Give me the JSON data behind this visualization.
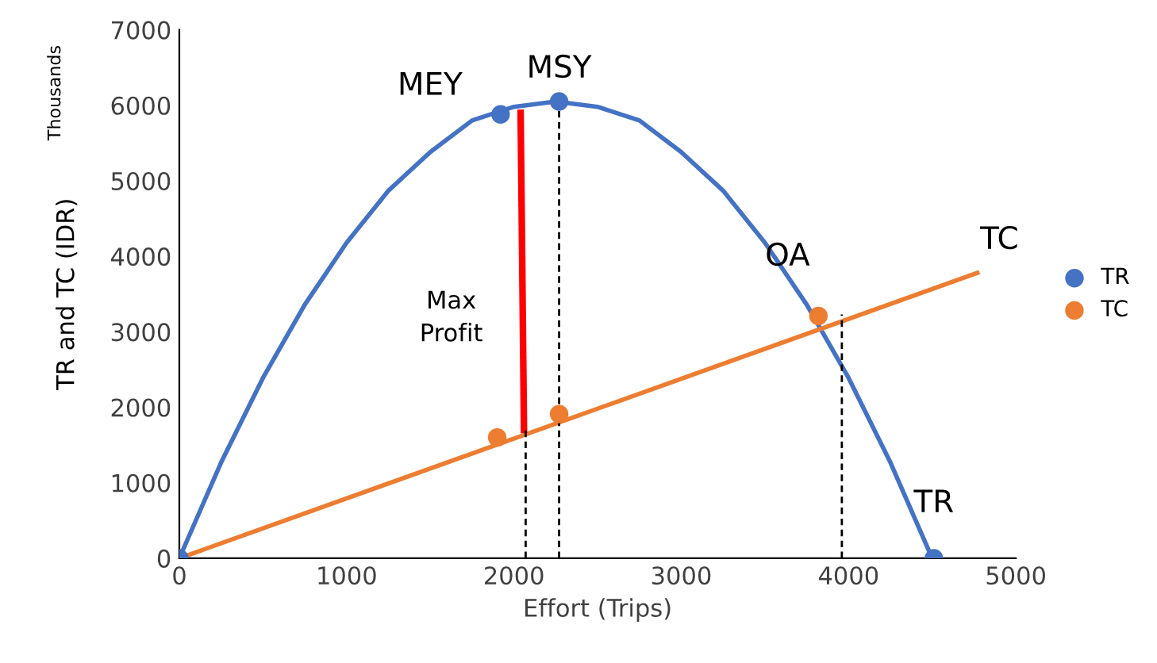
{
  "chart_data": {
    "type": "line",
    "xlabel": "Effort (Trips)",
    "ylabel": "TR and TC (IDR)",
    "xlim": [
      0,
      5000
    ],
    "xticks": [
      0,
      1000,
      2000,
      3000,
      4000,
      5000
    ],
    "ylim": [
      0,
      7000
    ],
    "yticks": [
      0,
      1000,
      2000,
      3000,
      4000,
      5000,
      6000,
      7000
    ],
    "grid": false,
    "legend": "right",
    "series": [
      {
        "color": "#4472c4",
        "marker": "none",
        "x": [
          0,
          250,
          500,
          750,
          1000,
          1250,
          1500,
          1750,
          2000,
          2250,
          2500,
          2750,
          3000,
          3250,
          3500,
          3750,
          4000,
          4250,
          4500
        ],
        "values": [
          0,
          1270,
          2390,
          3360,
          4180,
          4870,
          5380,
          5800,
          5980,
          6050,
          5980,
          5800,
          5380,
          4870,
          4180,
          3360,
          2390,
          1270,
          0
        ]
      },
      {
        "color": "#ed7d31",
        "marker": "none",
        "x": [
          0,
          4770
        ],
        "values": [
          0,
          3780
        ]
      },
      {
        "color": "#ff0000",
        "marker": "none",
        "x": [
          2060,
          2040
        ],
        "values": [
          1700,
          5900
        ]
      },
      {
        "color": "#000000",
        "marker": "none",
        "line_style": "dashed",
        "x": [
          2070,
          2070
        ],
        "values": [
          0,
          1700
        ]
      },
      {
        "color": "#000000",
        "marker": "none",
        "line_style": "dashed",
        "x": [
          2270,
          2270
        ],
        "values": [
          0,
          6050
        ]
      },
      {
        "color": "#000000",
        "marker": "none",
        "line_style": "dashed",
        "x": [
          3960,
          3960
        ],
        "values": [
          0,
          3230
        ]
      },
      {
        "type": "scatter",
        "name": "TC",
        "color": "#ed7d31",
        "marker": "circle",
        "x": [
          1900,
          2270,
          3820
        ],
        "values": [
          1600,
          1910,
          3210
        ]
      },
      {
        "type": "scatter",
        "name": "TR",
        "color": "#4472c4",
        "marker": "circle",
        "x": [
          0,
          1920,
          2270,
          4510
        ],
        "values": [
          0,
          5880,
          6050,
          0
        ]
      }
    ],
    "annotations": [
      "Thousands",
      "Max\nProfit",
      {
        "text": "MEY",
        "x": 1920,
        "y": 5880
      },
      {
        "text": "MSY",
        "x": 2270,
        "y": 6050
      },
      {
        "text": "OA",
        "x": 3820,
        "y": 3210
      },
      {
        "text": "TC",
        "x": 4770,
        "y": 3780
      },
      {
        "text": "TR",
        "x": 4510,
        "y": 0
      }
    ]
  }
}
